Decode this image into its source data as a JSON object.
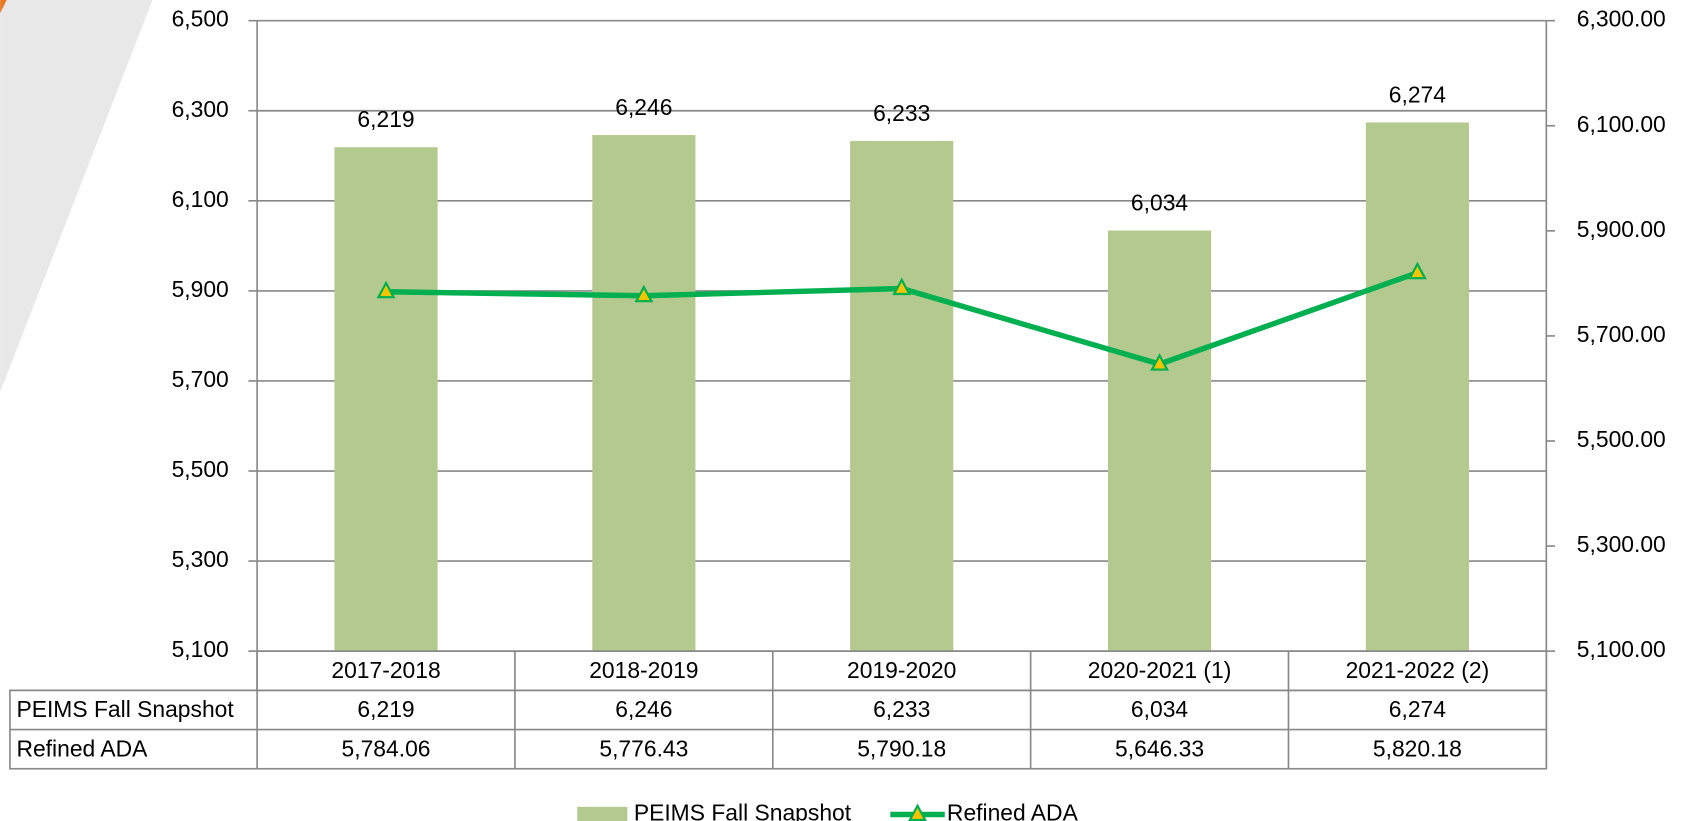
{
  "chart_data": {
    "type": "bar",
    "categories": [
      "2017-2018",
      "2018-2019",
      "2019-2020",
      "2020-2021 (1)",
      "2021-2022 (2)"
    ],
    "series": [
      {
        "name": "PEIMS Fall Snapshot",
        "type": "bar",
        "color": "#b3c98d",
        "values": [
          6219,
          6246,
          6233,
          6034,
          6274
        ],
        "value_labels": [
          "6,219",
          "6,246",
          "6,233",
          "6,034",
          "6,274"
        ]
      },
      {
        "name": "Refined ADA",
        "type": "line",
        "axis": "y2",
        "color": "#00b050",
        "values": [
          5784.06,
          5776.43,
          5790.18,
          5646.33,
          5820.18
        ],
        "value_labels": [
          "5,784.06",
          "5,776.43",
          "5,790.18",
          "5,646.33",
          "5,820.18"
        ]
      }
    ],
    "ylim": [
      5100,
      6500
    ],
    "yticks": [
      {
        "value": 5100,
        "label": "5,100"
      },
      {
        "value": 5300,
        "label": "5,300"
      },
      {
        "value": 5500,
        "label": "5,500"
      },
      {
        "value": 5700,
        "label": "5,700"
      },
      {
        "value": 5900,
        "label": "5,900"
      },
      {
        "value": 6100,
        "label": "6,100"
      },
      {
        "value": 6300,
        "label": "6,300"
      },
      {
        "value": 6500,
        "label": "6,500"
      }
    ],
    "y2lim": [
      5100,
      6300
    ],
    "y2ticks": [
      {
        "value": 5100,
        "label": "5,100.00"
      },
      {
        "value": 5300,
        "label": "5,300.00"
      },
      {
        "value": 5500,
        "label": "5,500.00"
      },
      {
        "value": 5700,
        "label": "5,700.00"
      },
      {
        "value": 5900,
        "label": "5,900.00"
      },
      {
        "value": 6100,
        "label": "6,100.00"
      },
      {
        "value": 6300,
        "label": "6,300.00"
      }
    ],
    "grid": true,
    "legend": "bottom"
  }
}
